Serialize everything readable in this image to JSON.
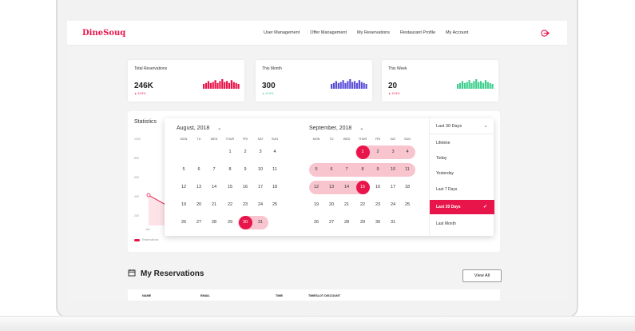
{
  "app": {
    "logo": "DineSouq"
  },
  "nav": {
    "links": [
      "User Management",
      "Offer Management",
      "My Reservations",
      "Restaurant Profile",
      "My Account"
    ],
    "logout_icon": "logout-icon"
  },
  "cards": [
    {
      "title": "Total Reservations",
      "value": "246K",
      "delta": "▲ 43.8%",
      "color": "#e8154a",
      "bars": [
        5,
        6,
        8,
        6,
        7,
        9,
        6,
        8,
        10,
        7,
        8,
        6,
        9,
        7,
        6,
        5
      ]
    },
    {
      "title": "This Month",
      "value": "300",
      "delta": "▲ 10.8%",
      "color": "#5b4fd8",
      "bars": [
        5,
        6,
        8,
        6,
        7,
        9,
        6,
        8,
        10,
        7,
        8,
        6,
        9,
        7,
        6,
        5
      ]
    },
    {
      "title": "This Week",
      "value": "20",
      "delta": "▲ 10.8%",
      "color": "#3ecf8e",
      "bars": [
        5,
        6,
        8,
        6,
        7,
        9,
        6,
        8,
        10,
        7,
        8,
        6,
        9,
        7,
        6,
        5
      ]
    }
  ],
  "stats": {
    "title": "Statistics",
    "y_ticks": [
      "1000",
      "800",
      "600",
      "400",
      "200",
      "0"
    ],
    "x_first": "Jan",
    "legend": "Reservations"
  },
  "picker": {
    "left_month": "August, 2018",
    "right_month": "September, 2018",
    "weekdays": [
      "MON",
      "TU",
      "WED",
      "THUR",
      "FRI",
      "SAT",
      "SUN"
    ],
    "left_days": [
      [
        "",
        "",
        "",
        "1",
        "2",
        "3",
        "4"
      ],
      [
        "5",
        "6",
        "7",
        "8",
        "9",
        "10",
        "11"
      ],
      [
        "12",
        "13",
        "14",
        "15",
        "16",
        "17",
        "18"
      ],
      [
        "19",
        "20",
        "21",
        "22",
        "23",
        "24",
        "25"
      ],
      [
        "26",
        "27",
        "28",
        "29",
        "30",
        "31",
        ""
      ]
    ],
    "right_days": [
      [
        "",
        "",
        "",
        "1",
        "2",
        "3",
        "4"
      ],
      [
        "5",
        "6",
        "7",
        "8",
        "9",
        "10",
        "11"
      ],
      [
        "12",
        "13",
        "14",
        "15",
        "16",
        "17",
        "18"
      ],
      [
        "19",
        "20",
        "21",
        "22",
        "23",
        "24",
        "25"
      ],
      [
        "26",
        "27",
        "28",
        "29",
        "30",
        "31",
        ""
      ]
    ],
    "selected_start": "30",
    "selected_end": "15",
    "range_label": "Last 30 Days",
    "presets": [
      "Lifetime",
      "Today",
      "Yesterday",
      "Last 7 Days",
      "Last 30 Days",
      "Last Month"
    ],
    "active_preset": "Last 30 Days"
  },
  "reservations": {
    "title": "My Reservations",
    "view_all": "View All",
    "columns": [
      "NAME",
      "EMAIL",
      "TIME",
      "TIMESLOT DISCOUNT"
    ]
  },
  "colors": {
    "accent": "#e8154a",
    "range": "#f8c5cf"
  }
}
